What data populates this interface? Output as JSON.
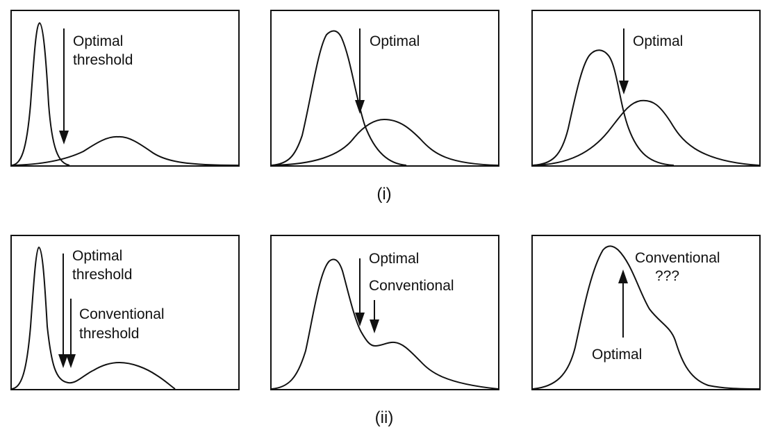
{
  "rows": [
    {
      "caption": "(i)",
      "panels": [
        {
          "labels": [
            "Optimal",
            "threshold"
          ]
        },
        {
          "labels": [
            "Optimal"
          ]
        },
        {
          "labels": [
            "Optimal"
          ]
        }
      ]
    },
    {
      "caption": "(ii)",
      "panels": [
        {
          "labels": [
            "Optimal",
            "threshold",
            "Conventional",
            "threshold"
          ]
        },
        {
          "labels": [
            "Optimal",
            "Conventional"
          ]
        },
        {
          "labels": [
            "Conventional",
            "???",
            "Optimal"
          ]
        }
      ]
    }
  ]
}
